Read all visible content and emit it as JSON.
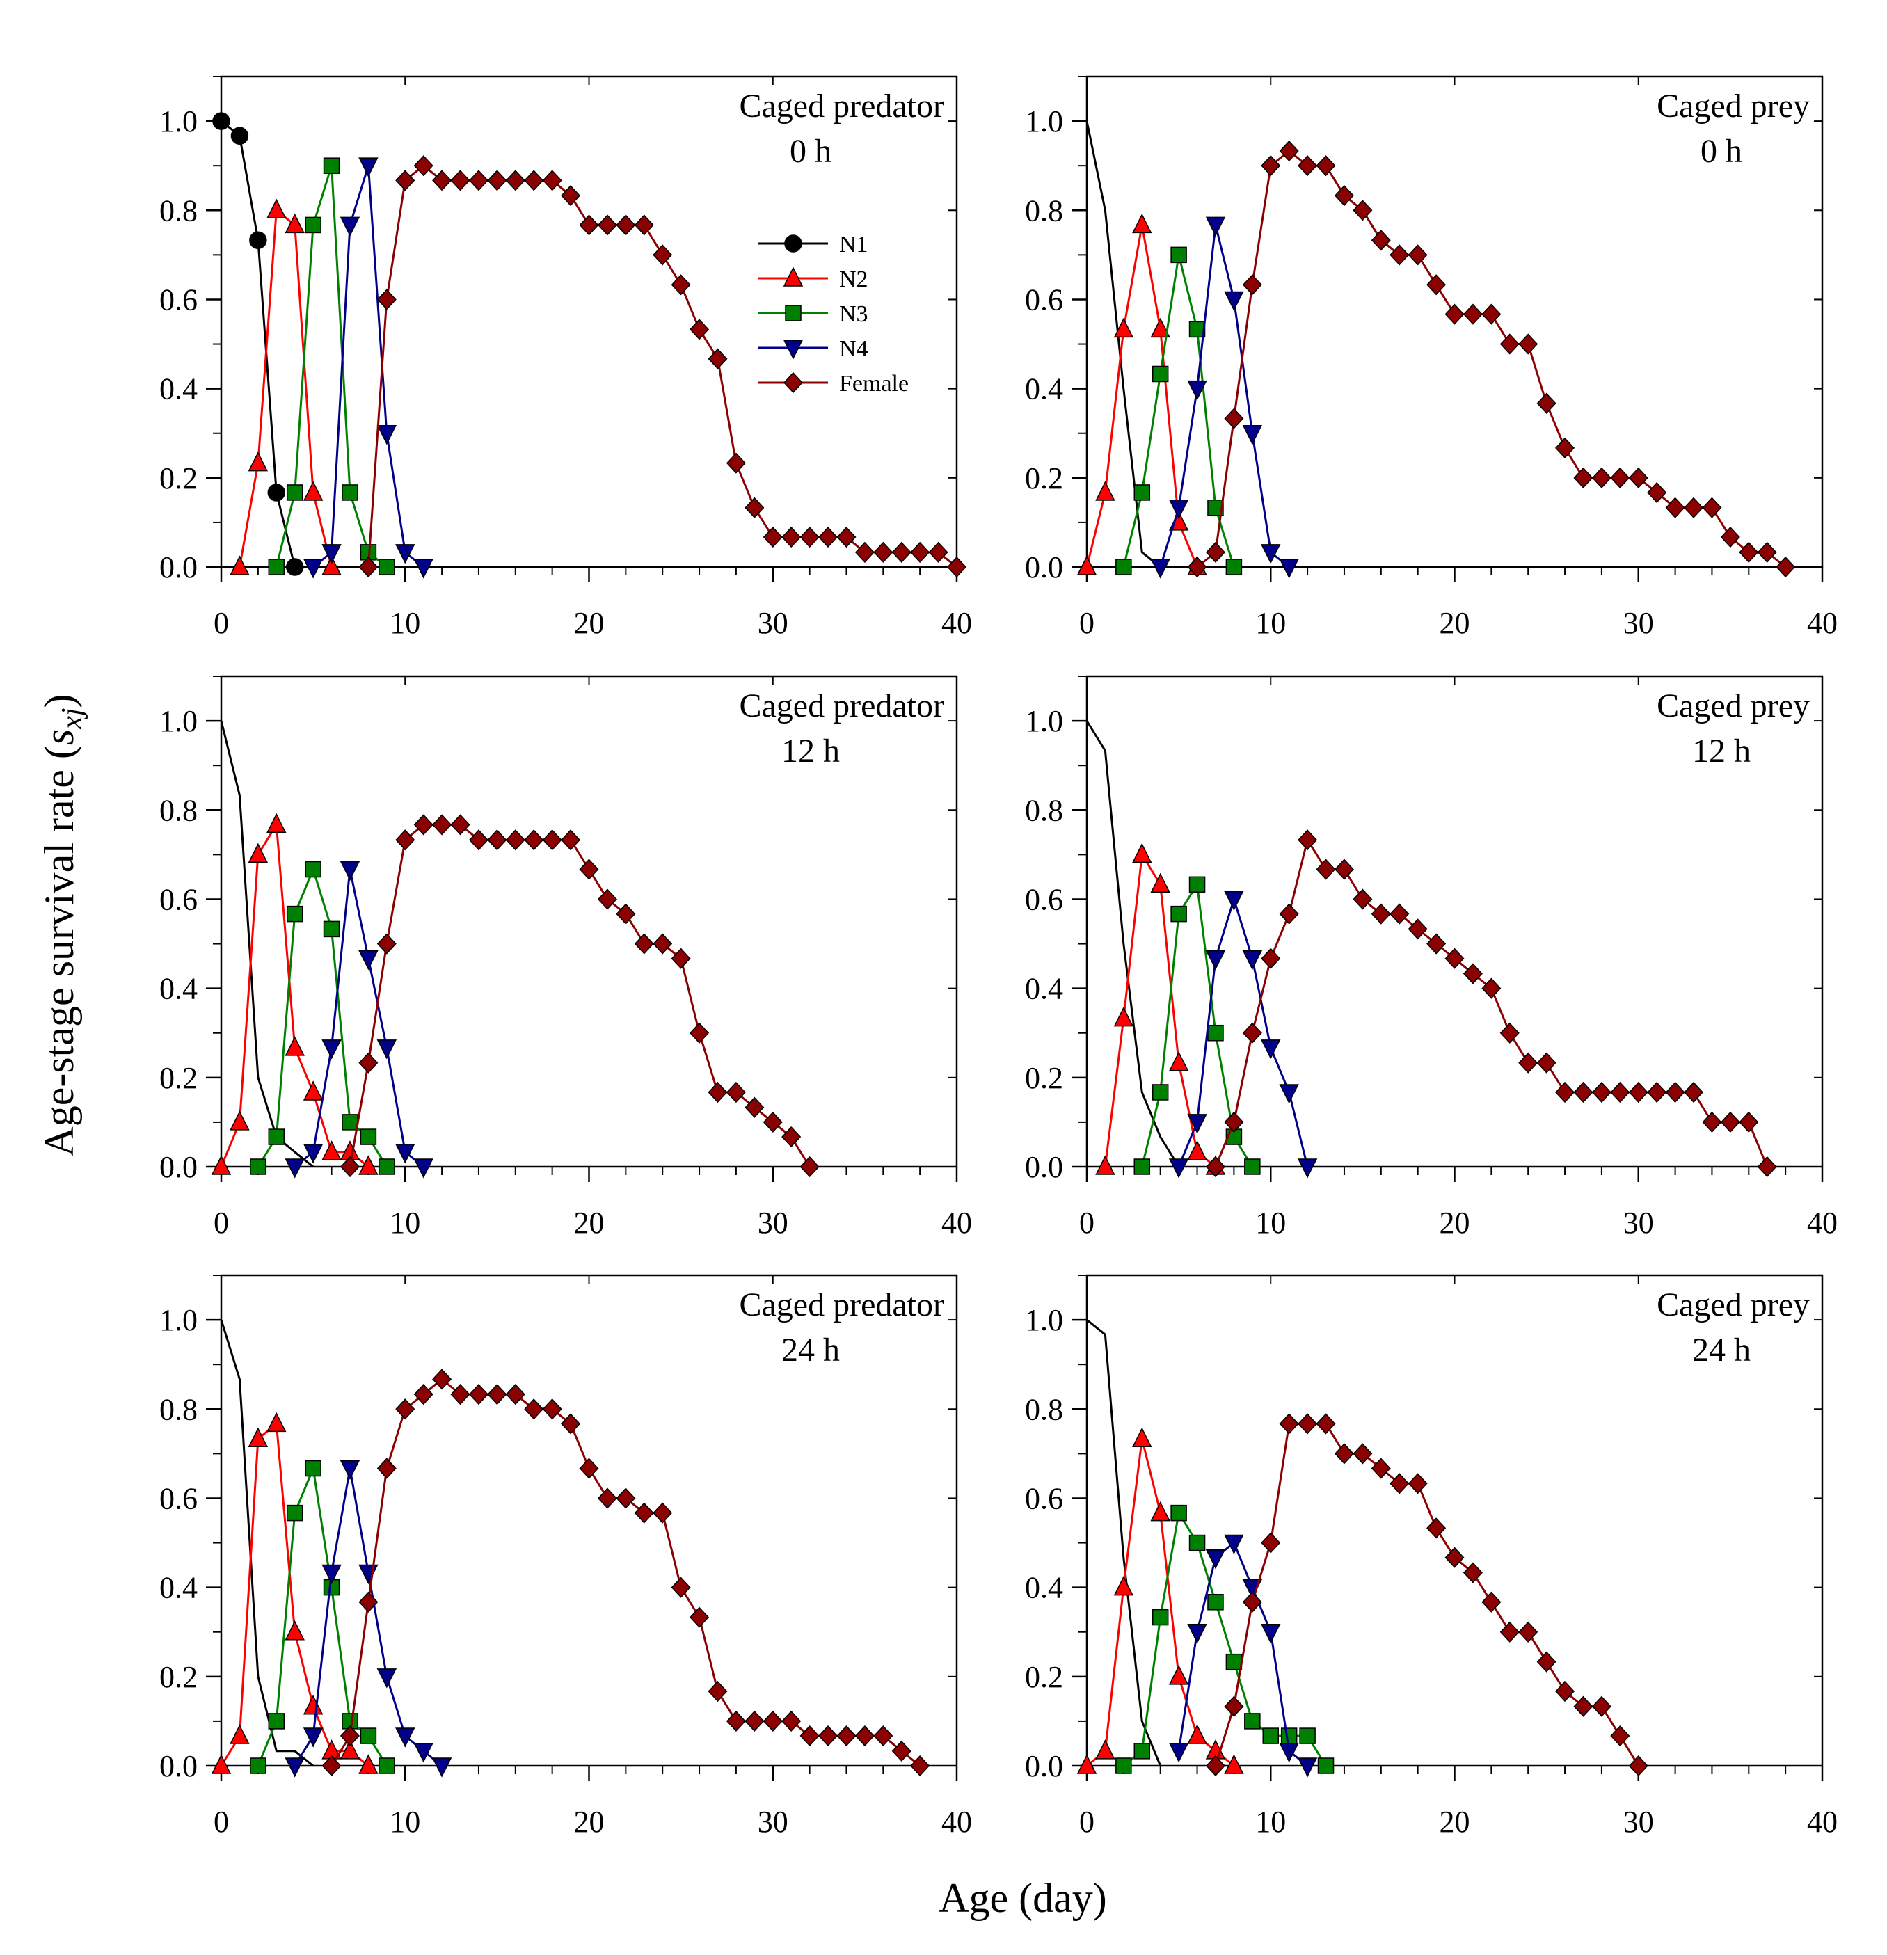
{
  "figure": {
    "ylabel_prefix": "Age-stage survival rate (",
    "ylabel_symbol": "s",
    "ylabel_sub": "xj",
    "ylabel_suffix": ")",
    "xlabel": "Age (day)"
  },
  "legend": [
    {
      "name": "N1",
      "color": "#000000",
      "marker": "circle"
    },
    {
      "name": "N2",
      "color": "#ff0000",
      "marker": "triangle-up"
    },
    {
      "name": "N3",
      "color": "#008000",
      "marker": "square"
    },
    {
      "name": "N4",
      "color": "#00008b",
      "marker": "triangle-down"
    },
    {
      "name": "Female",
      "color": "#8b0000",
      "marker": "diamond"
    }
  ],
  "chart_data": [
    {
      "type": "line",
      "title_line1": "Caged predator",
      "title_line2": "0 h",
      "xlim": [
        0,
        40
      ],
      "ylim": [
        0,
        1.1
      ],
      "xticks": [
        "0",
        "10",
        "20",
        "30",
        "40"
      ],
      "yticks": [
        "0.0",
        "0.2",
        "0.4",
        "0.6",
        "0.8",
        "1.0"
      ],
      "series": [
        {
          "name": "N1",
          "x": [
            0,
            1,
            2,
            3,
            4
          ],
          "y": [
            1.0,
            0.967,
            0.733,
            0.167,
            0.0
          ],
          "markers": true
        },
        {
          "name": "N2",
          "x": [
            1,
            2,
            3,
            4,
            5,
            6
          ],
          "y": [
            0.0,
            0.233,
            0.8,
            0.767,
            0.167,
            0.0
          ],
          "markers": true
        },
        {
          "name": "N3",
          "x": [
            3,
            4,
            5,
            6,
            7,
            8,
            9
          ],
          "y": [
            0.0,
            0.167,
            0.767,
            0.9,
            0.167,
            0.033,
            0.0
          ],
          "markers": true
        },
        {
          "name": "N4",
          "x": [
            5,
            6,
            7,
            8,
            9,
            10,
            11
          ],
          "y": [
            0.0,
            0.033,
            0.767,
            0.9,
            0.3,
            0.033,
            0.0
          ],
          "markers": true
        },
        {
          "name": "Female",
          "x": [
            8,
            9,
            10,
            11,
            12,
            13,
            14,
            15,
            16,
            17,
            18,
            19,
            20,
            21,
            22,
            23,
            24,
            25,
            26,
            27,
            28,
            29,
            30,
            31,
            32,
            33,
            34,
            35,
            36,
            37,
            38,
            39,
            40
          ],
          "y": [
            0.0,
            0.6,
            0.867,
            0.9,
            0.867,
            0.867,
            0.867,
            0.867,
            0.867,
            0.867,
            0.867,
            0.833,
            0.767,
            0.767,
            0.767,
            0.767,
            0.7,
            0.633,
            0.533,
            0.467,
            0.233,
            0.133,
            0.067,
            0.067,
            0.067,
            0.067,
            0.067,
            0.033,
            0.033,
            0.033,
            0.033,
            0.033,
            0.0
          ],
          "markers": true
        }
      ]
    },
    {
      "type": "line",
      "title_line1": "Caged prey",
      "title_line2": "0 h",
      "xlim": [
        0,
        40
      ],
      "ylim": [
        0,
        1.1
      ],
      "xticks": [
        "0",
        "10",
        "20",
        "30",
        "40"
      ],
      "yticks": [
        "0.0",
        "0.2",
        "0.4",
        "0.6",
        "0.8",
        "1.0"
      ],
      "series": [
        {
          "name": "N1",
          "x": [
            0,
            1,
            2,
            3,
            4
          ],
          "y": [
            1.0,
            0.8,
            0.4,
            0.033,
            0.0
          ],
          "markers": false
        },
        {
          "name": "N2",
          "x": [
            0,
            1,
            2,
            3,
            4,
            5,
            6
          ],
          "y": [
            0.0,
            0.167,
            0.533,
            0.767,
            0.533,
            0.1,
            0.0
          ],
          "markers": true
        },
        {
          "name": "N3",
          "x": [
            2,
            3,
            4,
            5,
            6,
            7,
            8
          ],
          "y": [
            0.0,
            0.167,
            0.433,
            0.7,
            0.533,
            0.133,
            0.0
          ],
          "markers": true
        },
        {
          "name": "N4",
          "x": [
            4,
            5,
            6,
            7,
            8,
            9,
            10,
            11
          ],
          "y": [
            0.0,
            0.133,
            0.4,
            0.767,
            0.6,
            0.3,
            0.033,
            0.0
          ],
          "markers": true
        },
        {
          "name": "Female",
          "x": [
            6,
            7,
            8,
            9,
            10,
            11,
            12,
            13,
            14,
            15,
            16,
            17,
            18,
            19,
            20,
            21,
            22,
            23,
            24,
            25,
            26,
            27,
            28,
            29,
            30,
            31,
            32,
            33,
            34,
            35,
            36,
            37,
            38
          ],
          "y": [
            0.0,
            0.033,
            0.333,
            0.633,
            0.9,
            0.933,
            0.9,
            0.9,
            0.833,
            0.8,
            0.733,
            0.7,
            0.7,
            0.633,
            0.567,
            0.567,
            0.567,
            0.5,
            0.5,
            0.367,
            0.267,
            0.2,
            0.2,
            0.2,
            0.2,
            0.167,
            0.133,
            0.133,
            0.133,
            0.067,
            0.033,
            0.033,
            0.0
          ],
          "markers": true
        }
      ]
    },
    {
      "type": "line",
      "title_line1": "Caged predator",
      "title_line2": "12 h",
      "xlim": [
        0,
        40
      ],
      "ylim": [
        0,
        1.1
      ],
      "xticks": [
        "0",
        "10",
        "20",
        "30",
        "40"
      ],
      "yticks": [
        "0.0",
        "0.2",
        "0.4",
        "0.6",
        "0.8",
        "1.0"
      ],
      "series": [
        {
          "name": "N1",
          "x": [
            0,
            1,
            2,
            3,
            4,
            5
          ],
          "y": [
            1.0,
            0.833,
            0.2,
            0.067,
            0.033,
            0.0
          ],
          "markers": false
        },
        {
          "name": "N2",
          "x": [
            0,
            1,
            2,
            3,
            4,
            5,
            6,
            7,
            8
          ],
          "y": [
            0.0,
            0.1,
            0.7,
            0.767,
            0.267,
            0.167,
            0.033,
            0.033,
            0.0
          ],
          "markers": true
        },
        {
          "name": "N3",
          "x": [
            2,
            3,
            4,
            5,
            6,
            7,
            8,
            9
          ],
          "y": [
            0.0,
            0.067,
            0.567,
            0.667,
            0.533,
            0.1,
            0.067,
            0.0
          ],
          "markers": true
        },
        {
          "name": "N4",
          "x": [
            4,
            5,
            6,
            7,
            8,
            9,
            10,
            11
          ],
          "y": [
            0.0,
            0.033,
            0.267,
            0.667,
            0.467,
            0.267,
            0.033,
            0.0
          ],
          "markers": true
        },
        {
          "name": "Female",
          "x": [
            7,
            8,
            9,
            10,
            11,
            12,
            13,
            14,
            15,
            16,
            17,
            18,
            19,
            20,
            21,
            22,
            23,
            24,
            25,
            26,
            27,
            28,
            29,
            30,
            31,
            32
          ],
          "y": [
            0.0,
            0.233,
            0.5,
            0.733,
            0.767,
            0.767,
            0.767,
            0.733,
            0.733,
            0.733,
            0.733,
            0.733,
            0.733,
            0.667,
            0.6,
            0.567,
            0.5,
            0.5,
            0.467,
            0.3,
            0.167,
            0.167,
            0.133,
            0.1,
            0.067,
            0.0
          ],
          "markers": true
        }
      ]
    },
    {
      "type": "line",
      "title_line1": "Caged prey",
      "title_line2": "12 h",
      "xlim": [
        0,
        40
      ],
      "ylim": [
        0,
        1.1
      ],
      "xticks": [
        "0",
        "10",
        "20",
        "30",
        "40"
      ],
      "yticks": [
        "0.0",
        "0.2",
        "0.4",
        "0.6",
        "0.8",
        "1.0"
      ],
      "series": [
        {
          "name": "N1",
          "x": [
            0,
            1,
            2,
            3,
            4,
            5
          ],
          "y": [
            1.0,
            0.933,
            0.5,
            0.167,
            0.067,
            0.0
          ],
          "markers": false
        },
        {
          "name": "N2",
          "x": [
            1,
            2,
            3,
            4,
            5,
            6,
            7
          ],
          "y": [
            0.0,
            0.333,
            0.7,
            0.633,
            0.233,
            0.033,
            0.0
          ],
          "markers": true
        },
        {
          "name": "N3",
          "x": [
            3,
            4,
            5,
            6,
            7,
            8,
            9
          ],
          "y": [
            0.0,
            0.167,
            0.567,
            0.633,
            0.3,
            0.067,
            0.0
          ],
          "markers": true
        },
        {
          "name": "N4",
          "x": [
            5,
            6,
            7,
            8,
            9,
            10,
            11,
            12
          ],
          "y": [
            0.0,
            0.1,
            0.467,
            0.6,
            0.467,
            0.267,
            0.167,
            0.0
          ],
          "markers": true
        },
        {
          "name": "Female",
          "x": [
            7,
            8,
            9,
            10,
            11,
            12,
            13,
            14,
            15,
            16,
            17,
            18,
            19,
            20,
            21,
            22,
            23,
            24,
            25,
            26,
            27,
            28,
            29,
            30,
            31,
            32,
            33,
            34,
            35,
            36,
            37
          ],
          "y": [
            0.0,
            0.1,
            0.3,
            0.467,
            0.567,
            0.733,
            0.667,
            0.667,
            0.6,
            0.567,
            0.567,
            0.533,
            0.5,
            0.467,
            0.433,
            0.4,
            0.3,
            0.233,
            0.233,
            0.167,
            0.167,
            0.167,
            0.167,
            0.167,
            0.167,
            0.167,
            0.167,
            0.1,
            0.1,
            0.1,
            0.0
          ],
          "markers": true
        }
      ]
    },
    {
      "type": "line",
      "title_line1": "Caged predator",
      "title_line2": "24 h",
      "xlim": [
        0,
        40
      ],
      "ylim": [
        0,
        1.1
      ],
      "xticks": [
        "0",
        "10",
        "20",
        "30",
        "40"
      ],
      "yticks": [
        "0.0",
        "0.2",
        "0.4",
        "0.6",
        "0.8",
        "1.0"
      ],
      "series": [
        {
          "name": "N1",
          "x": [
            0,
            1,
            2,
            3,
            4,
            5
          ],
          "y": [
            1.0,
            0.867,
            0.2,
            0.033,
            0.033,
            0.0
          ],
          "markers": false
        },
        {
          "name": "N2",
          "x": [
            0,
            1,
            2,
            3,
            4,
            5,
            6,
            7,
            8
          ],
          "y": [
            0.0,
            0.067,
            0.733,
            0.767,
            0.3,
            0.133,
            0.033,
            0.033,
            0.0
          ],
          "markers": true
        },
        {
          "name": "N3",
          "x": [
            2,
            3,
            4,
            5,
            6,
            7,
            8,
            9
          ],
          "y": [
            0.0,
            0.1,
            0.567,
            0.667,
            0.4,
            0.1,
            0.067,
            0.0
          ],
          "markers": true
        },
        {
          "name": "N4",
          "x": [
            4,
            5,
            6,
            7,
            8,
            9,
            10,
            11,
            12
          ],
          "y": [
            0.0,
            0.067,
            0.433,
            0.667,
            0.433,
            0.2,
            0.067,
            0.033,
            0.0
          ],
          "markers": true
        },
        {
          "name": "Female",
          "x": [
            6,
            7,
            8,
            9,
            10,
            11,
            12,
            13,
            14,
            15,
            16,
            17,
            18,
            19,
            20,
            21,
            22,
            23,
            24,
            25,
            26,
            27,
            28,
            29,
            30,
            31,
            32,
            33,
            34,
            35,
            36,
            37,
            38
          ],
          "y": [
            0.0,
            0.067,
            0.367,
            0.667,
            0.8,
            0.833,
            0.867,
            0.833,
            0.833,
            0.833,
            0.833,
            0.8,
            0.8,
            0.767,
            0.667,
            0.6,
            0.6,
            0.567,
            0.567,
            0.4,
            0.333,
            0.167,
            0.1,
            0.1,
            0.1,
            0.1,
            0.067,
            0.067,
            0.067,
            0.067,
            0.067,
            0.033,
            0.0
          ],
          "markers": true
        }
      ]
    },
    {
      "type": "line",
      "title_line1": "Caged prey",
      "title_line2": "24 h",
      "xlim": [
        0,
        40
      ],
      "ylim": [
        0,
        1.1
      ],
      "xticks": [
        "0",
        "10",
        "20",
        "30",
        "40"
      ],
      "yticks": [
        "0.0",
        "0.2",
        "0.4",
        "0.6",
        "0.8",
        "1.0"
      ],
      "series": [
        {
          "name": "N1",
          "x": [
            0,
            1,
            2,
            3,
            4
          ],
          "y": [
            1.0,
            0.967,
            0.467,
            0.1,
            0.0
          ],
          "markers": false
        },
        {
          "name": "N2",
          "x": [
            0,
            1,
            2,
            3,
            4,
            5,
            6,
            7,
            8
          ],
          "y": [
            0.0,
            0.033,
            0.4,
            0.733,
            0.567,
            0.2,
            0.067,
            0.033,
            0.0
          ],
          "markers": true
        },
        {
          "name": "N3",
          "x": [
            2,
            3,
            4,
            5,
            6,
            7,
            8,
            9,
            10,
            11,
            12,
            13
          ],
          "y": [
            0.0,
            0.033,
            0.333,
            0.567,
            0.5,
            0.367,
            0.233,
            0.1,
            0.067,
            0.067,
            0.067,
            0.0
          ],
          "markers": true
        },
        {
          "name": "N4",
          "x": [
            5,
            6,
            7,
            8,
            9,
            10,
            11,
            12
          ],
          "y": [
            0.033,
            0.3,
            0.467,
            0.5,
            0.4,
            0.3,
            0.033,
            0.0
          ],
          "markers": true
        },
        {
          "name": "Female",
          "x": [
            7,
            8,
            9,
            10,
            11,
            12,
            13,
            14,
            15,
            16,
            17,
            18,
            19,
            20,
            21,
            22,
            23,
            24,
            25,
            26,
            27,
            28,
            29,
            30
          ],
          "y": [
            0.0,
            0.133,
            0.367,
            0.5,
            0.767,
            0.767,
            0.767,
            0.7,
            0.7,
            0.667,
            0.633,
            0.633,
            0.533,
            0.467,
            0.433,
            0.367,
            0.3,
            0.3,
            0.233,
            0.167,
            0.133,
            0.133,
            0.067,
            0.0
          ],
          "markers": true
        }
      ]
    }
  ]
}
